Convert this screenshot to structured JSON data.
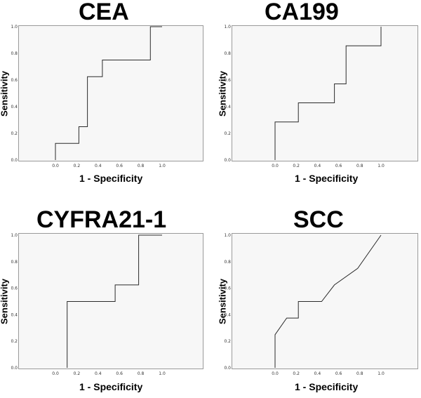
{
  "chart_data": [
    {
      "type": "line",
      "title": "CEA",
      "xlabel": "1 - Specificity",
      "ylabel": "Sensitivity",
      "xlim": [
        0,
        1
      ],
      "ylim": [
        0,
        1
      ],
      "xticks": [
        "0.0",
        "0.2",
        "0.4",
        "0.6",
        "0.8",
        "1.0"
      ],
      "yticks": [
        "0.0",
        "0.2",
        "0.4",
        "0.6",
        "0.8",
        "1.0"
      ],
      "grid": false,
      "series": [
        {
          "x": [
            0,
            0,
            0.22,
            0.22,
            0.3,
            0.3,
            0.44,
            0.44,
            0.89,
            0.89,
            1.0
          ],
          "y": [
            0,
            0.125,
            0.125,
            0.25,
            0.25,
            0.625,
            0.625,
            0.75,
            0.75,
            1.0,
            1.0
          ]
        }
      ]
    },
    {
      "type": "line",
      "title": "CA199",
      "xlabel": "1 - Specificity",
      "ylabel": "Sensitivity",
      "xlim": [
        0,
        1
      ],
      "ylim": [
        0,
        1
      ],
      "xticks": [
        "0.0",
        "0.2",
        "0.4",
        "0.6",
        "0.8",
        "1.0"
      ],
      "yticks": [
        "0.0",
        "0.2",
        "0.4",
        "0.6",
        "0.8",
        "1.0"
      ],
      "grid": false,
      "series": [
        {
          "x": [
            0,
            0,
            0.22,
            0.22,
            0.56,
            0.56,
            0.67,
            0.67,
            1.0,
            1.0
          ],
          "y": [
            0,
            0.286,
            0.286,
            0.429,
            0.429,
            0.571,
            0.571,
            0.857,
            0.857,
            1.0
          ]
        }
      ]
    },
    {
      "type": "line",
      "title": "CYFRA21-1",
      "xlabel": "1 - Specificity",
      "ylabel": "Sensitivity",
      "xlim": [
        0,
        1
      ],
      "ylim": [
        0,
        1
      ],
      "xticks": [
        "0.0",
        "0.2",
        "0.4",
        "0.6",
        "0.8",
        "1.0"
      ],
      "yticks": [
        "0.0",
        "0.2",
        "0.4",
        "0.6",
        "0.8",
        "1.0"
      ],
      "grid": false,
      "series": [
        {
          "x": [
            0.11,
            0.11,
            0.56,
            0.56,
            0.78,
            0.78,
            1.0
          ],
          "y": [
            0,
            0.5,
            0.5,
            0.625,
            0.625,
            1.0,
            1.0
          ]
        }
      ]
    },
    {
      "type": "line",
      "title": "SCC",
      "xlabel": "1 - Specificity",
      "ylabel": "Sensitivity",
      "xlim": [
        0,
        1
      ],
      "ylim": [
        0,
        1
      ],
      "xticks": [
        "0.0",
        "0.2",
        "0.4",
        "0.6",
        "0.8",
        "1.0"
      ],
      "yticks": [
        "0.0",
        "0.2",
        "0.4",
        "0.6",
        "0.8",
        "1.0"
      ],
      "grid": false,
      "series": [
        {
          "x": [
            0,
            0,
            0.11,
            0.22,
            0.22,
            0.44,
            0.56,
            0.78,
            1.0
          ],
          "y": [
            0,
            0.25,
            0.375,
            0.375,
            0.5,
            0.5,
            0.625,
            0.75,
            1.0
          ]
        }
      ]
    }
  ]
}
